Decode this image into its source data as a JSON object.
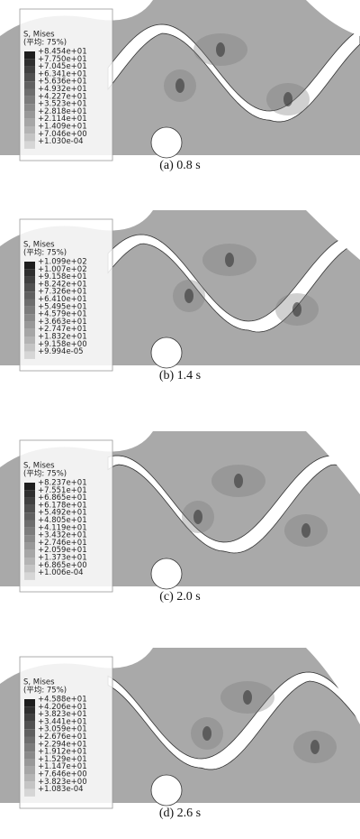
{
  "panels": [
    {
      "legend_title": "S, Mises",
      "legend_subtitle": "(平均: 75%)",
      "values": [
        "+8.454e+01",
        "+7.750e+01",
        "+7.045e+01",
        "+6.341e+01",
        "+5.636e+01",
        "+4.932e+01",
        "+4.227e+01",
        "+3.523e+01",
        "+2.818e+01",
        "+2.114e+01",
        "+1.409e+01",
        "+7.046e+00",
        "+1.030e-04"
      ],
      "caption": "(a) 0.8 s"
    },
    {
      "legend_title": "S, Mises",
      "legend_subtitle": "(平均: 75%)",
      "values": [
        "+1.099e+02",
        "+1.007e+02",
        "+9.158e+01",
        "+8.242e+01",
        "+7.326e+01",
        "+6.410e+01",
        "+5.495e+01",
        "+4.579e+01",
        "+3.663e+01",
        "+2.747e+01",
        "+1.832e+01",
        "+9.158e+00",
        "+9.994e-05"
      ],
      "caption": "(b) 1.4 s"
    },
    {
      "legend_title": "S, Mises",
      "legend_subtitle": "(平均: 75%)",
      "values": [
        "+8.237e+01",
        "+7.551e+01",
        "+6.865e+01",
        "+6.178e+01",
        "+5.492e+01",
        "+4.805e+01",
        "+4.119e+01",
        "+3.432e+01",
        "+2.746e+01",
        "+2.059e+01",
        "+1.373e+01",
        "+6.865e+00",
        "+1.006e-04"
      ],
      "caption": "(c) 2.0 s"
    },
    {
      "legend_title": "S, Mises",
      "legend_subtitle": "(平均: 75%)",
      "values": [
        "+4.588e+01",
        "+4.206e+01",
        "+3.823e+01",
        "+3.441e+01",
        "+3.059e+01",
        "+2.676e+01",
        "+2.294e+01",
        "+1.912e+01",
        "+1.529e+01",
        "+1.147e+01",
        "+7.646e+00",
        "+3.823e+00",
        "+1.083e-04"
      ],
      "caption": "(d) 2.6 s"
    }
  ]
}
